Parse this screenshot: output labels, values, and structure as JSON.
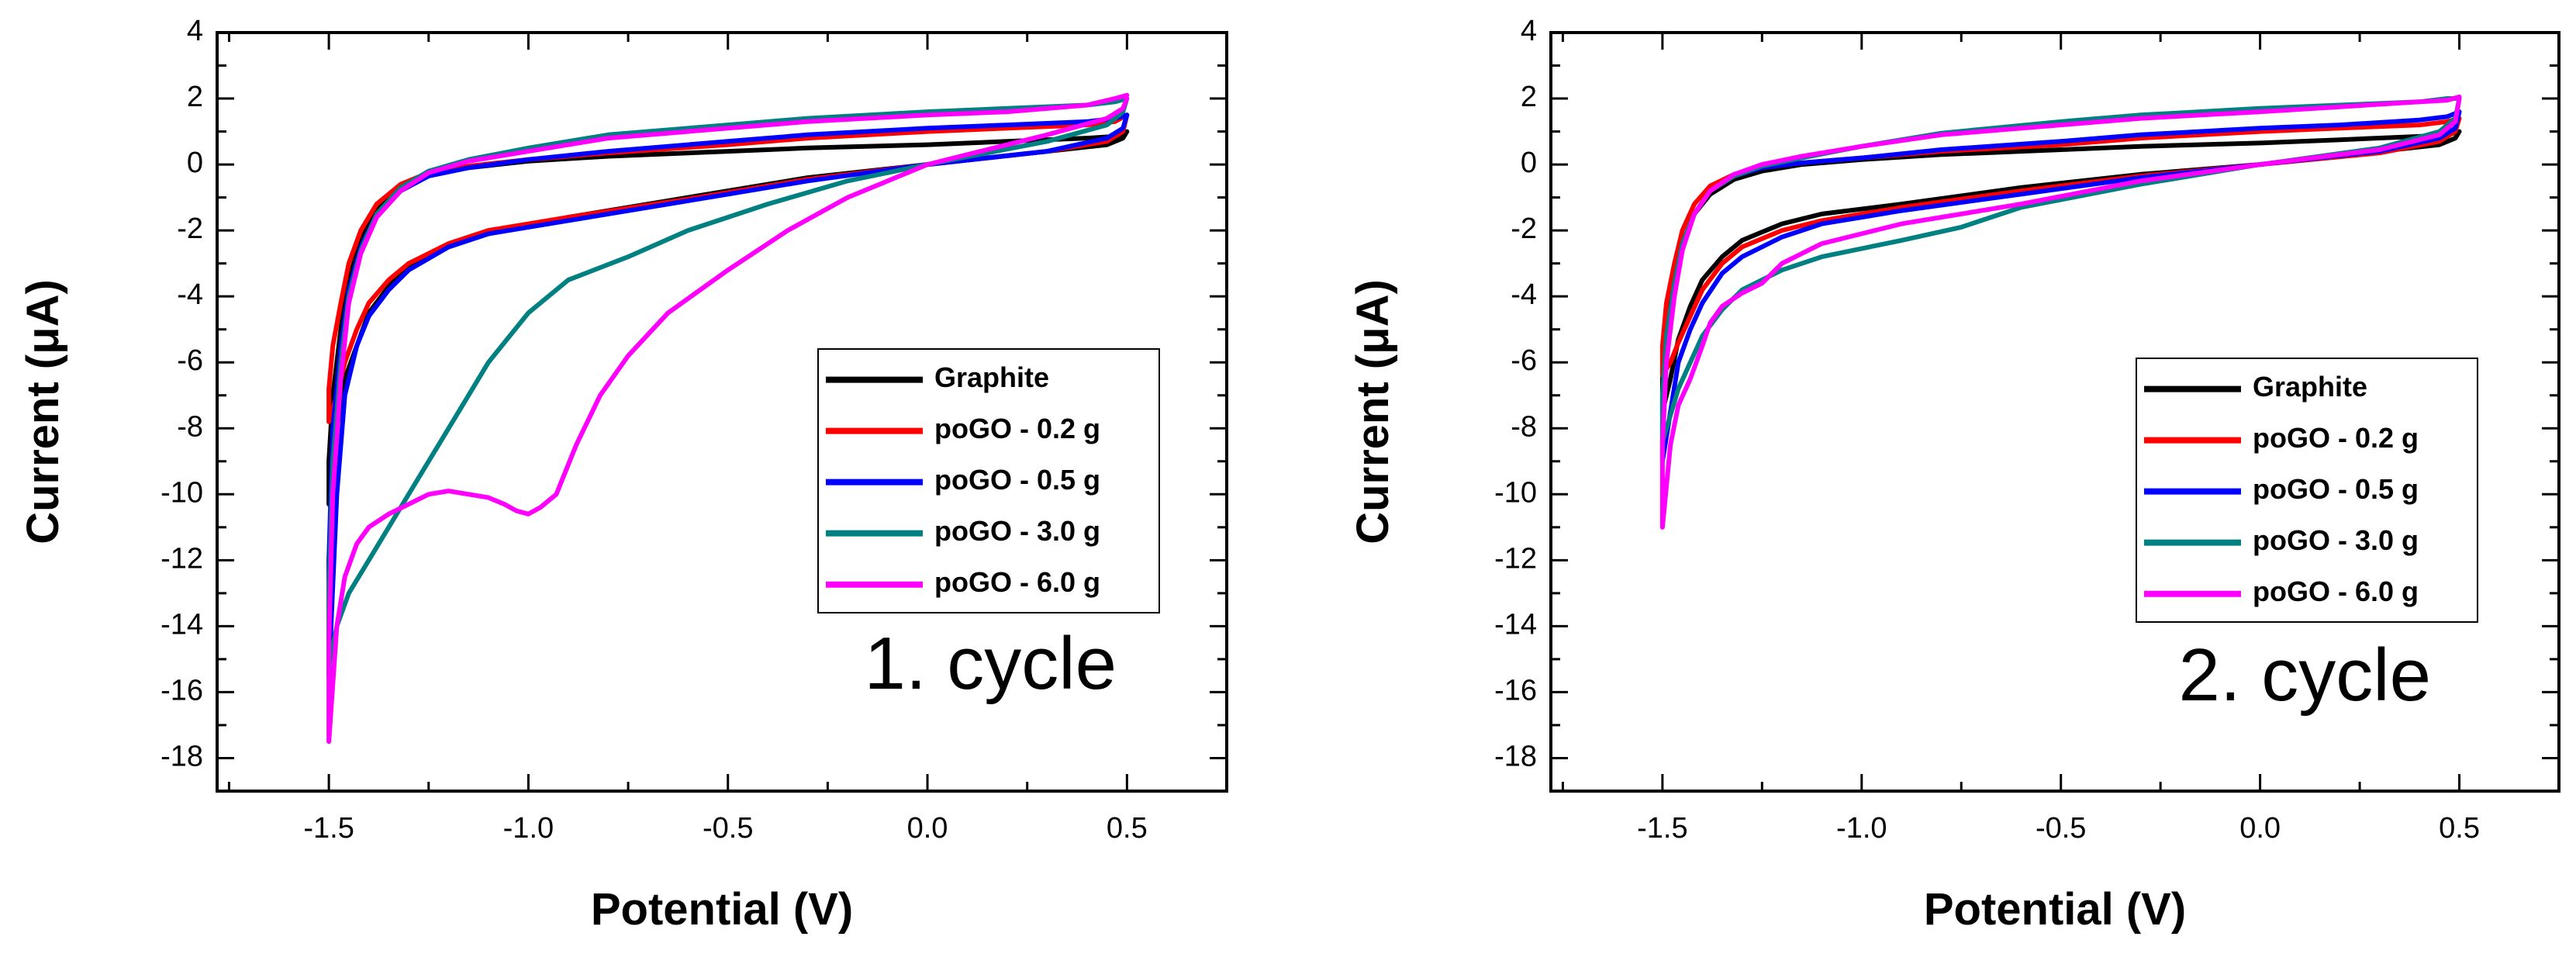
{
  "chart_data": [
    {
      "type": "line",
      "xlabel": "Potential (V)",
      "ylabel": "Current (μA)",
      "xlim": [
        -1.78,
        0.75
      ],
      "ylim": [
        -19,
        4
      ],
      "xticks": [
        -1.5,
        -1.0,
        -0.5,
        0.0,
        0.5
      ],
      "xtick_labels": [
        "-1.5",
        "-1.0",
        "-0.5",
        "0.0",
        "0.5"
      ],
      "yticks": [
        4,
        2,
        0,
        -2,
        -4,
        -6,
        -8,
        -10,
        -12,
        -14,
        -16,
        -18
      ],
      "ytick_labels": [
        "4",
        "2",
        "0",
        "-2",
        "-4",
        "-6",
        "-8",
        "-10",
        "-12",
        "-14",
        "-16",
        "-18"
      ],
      "grid": false,
      "legend_position": "right",
      "annotation": "1. cycle",
      "series": [
        {
          "name": "Graphite",
          "color": "#000000",
          "x": [
            0.5,
            0.49,
            0.45,
            0.3,
            0.0,
            -0.3,
            -0.6,
            -0.9,
            -1.1,
            -1.2,
            -1.3,
            -1.35,
            -1.4,
            -1.43,
            -1.46,
            -1.48,
            -1.5,
            -1.5,
            -1.49,
            -1.47,
            -1.45,
            -1.42,
            -1.38,
            -1.32,
            -1.25,
            -1.15,
            -1.0,
            -0.8,
            -0.5,
            -0.3,
            0.0,
            0.2,
            0.4,
            0.47,
            0.5
          ],
          "y": [
            1.0,
            0.8,
            0.6,
            0.4,
            0.0,
            -0.4,
            -1.0,
            -1.6,
            -2.1,
            -2.5,
            -3.1,
            -3.7,
            -4.5,
            -5.5,
            -6.5,
            -8.0,
            -10.3,
            -9.0,
            -7.0,
            -5.0,
            -3.5,
            -2.3,
            -1.4,
            -0.7,
            -0.3,
            -0.1,
            0.1,
            0.25,
            0.4,
            0.5,
            0.6,
            0.7,
            0.8,
            0.85,
            1.0
          ]
        },
        {
          "name": "poGO - 0.2 g",
          "color": "#ff0000",
          "x": [
            0.5,
            0.49,
            0.45,
            0.3,
            0.0,
            -0.3,
            -0.6,
            -0.9,
            -1.1,
            -1.2,
            -1.3,
            -1.35,
            -1.4,
            -1.43,
            -1.46,
            -1.48,
            -1.5,
            -1.5,
            -1.49,
            -1.47,
            -1.45,
            -1.42,
            -1.38,
            -1.32,
            -1.25,
            -1.15,
            -1.0,
            -0.8,
            -0.5,
            -0.3,
            0.0,
            0.2,
            0.4,
            0.47,
            0.5
          ],
          "y": [
            1.5,
            1.0,
            0.7,
            0.4,
            0.0,
            -0.45,
            -1.05,
            -1.6,
            -2.0,
            -2.4,
            -3.0,
            -3.5,
            -4.2,
            -5.0,
            -6.0,
            -7.0,
            -7.8,
            -6.8,
            -5.5,
            -4.2,
            -3.0,
            -2.0,
            -1.2,
            -0.6,
            -0.25,
            -0.05,
            0.15,
            0.35,
            0.6,
            0.8,
            1.0,
            1.1,
            1.2,
            1.3,
            1.5
          ]
        },
        {
          "name": "poGO - 0.5 g",
          "color": "#0000ff",
          "x": [
            0.5,
            0.49,
            0.45,
            0.3,
            0.0,
            -0.3,
            -0.6,
            -0.9,
            -1.1,
            -1.2,
            -1.3,
            -1.35,
            -1.4,
            -1.43,
            -1.46,
            -1.48,
            -1.5,
            -1.5,
            -1.49,
            -1.47,
            -1.45,
            -1.42,
            -1.38,
            -1.32,
            -1.25,
            -1.15,
            -1.0,
            -0.8,
            -0.5,
            -0.3,
            0.0,
            0.2,
            0.4,
            0.47,
            0.5
          ],
          "y": [
            1.5,
            1.1,
            0.8,
            0.4,
            0.0,
            -0.5,
            -1.1,
            -1.7,
            -2.1,
            -2.5,
            -3.2,
            -3.8,
            -4.6,
            -5.5,
            -7.0,
            -10.0,
            -15.5,
            -12.0,
            -8.0,
            -5.5,
            -3.8,
            -2.5,
            -1.5,
            -0.8,
            -0.35,
            -0.1,
            0.15,
            0.4,
            0.7,
            0.9,
            1.1,
            1.2,
            1.3,
            1.4,
            1.5
          ]
        },
        {
          "name": "poGO - 3.0 g",
          "color": "#008080",
          "x": [
            0.5,
            0.49,
            0.45,
            0.3,
            0.0,
            -0.2,
            -0.4,
            -0.6,
            -0.75,
            -0.9,
            -1.0,
            -1.1,
            -1.2,
            -1.3,
            -1.35,
            -1.4,
            -1.45,
            -1.48,
            -1.5,
            -1.5,
            -1.49,
            -1.47,
            -1.45,
            -1.42,
            -1.38,
            -1.32,
            -1.25,
            -1.15,
            -1.0,
            -0.8,
            -0.5,
            -0.3,
            0.0,
            0.2,
            0.4,
            0.47,
            0.5
          ],
          "y": [
            2.0,
            1.6,
            1.2,
            0.7,
            0.0,
            -0.5,
            -1.2,
            -2.0,
            -2.8,
            -3.5,
            -4.5,
            -6.0,
            -8.0,
            -10.0,
            -11.0,
            -12.0,
            -13.0,
            -14.0,
            -15.2,
            -13.0,
            -9.0,
            -6.0,
            -4.0,
            -2.6,
            -1.5,
            -0.7,
            -0.2,
            0.15,
            0.5,
            0.9,
            1.2,
            1.4,
            1.6,
            1.7,
            1.8,
            1.9,
            2.0
          ]
        },
        {
          "name": "poGO - 6.0 g",
          "color": "#ff00ff",
          "x": [
            0.5,
            0.49,
            0.45,
            0.3,
            0.0,
            -0.2,
            -0.35,
            -0.5,
            -0.65,
            -0.75,
            -0.82,
            -0.88,
            -0.93,
            -0.97,
            -1.0,
            -1.03,
            -1.06,
            -1.1,
            -1.15,
            -1.2,
            -1.25,
            -1.3,
            -1.35,
            -1.4,
            -1.43,
            -1.46,
            -1.48,
            -1.5,
            -1.5,
            -1.49,
            -1.47,
            -1.45,
            -1.42,
            -1.38,
            -1.32,
            -1.25,
            -1.15,
            -1.0,
            -0.8,
            -0.5,
            -0.3,
            0.0,
            0.2,
            0.4,
            0.47,
            0.5
          ],
          "y": [
            2.0,
            1.7,
            1.4,
            0.9,
            0.0,
            -1.0,
            -2.0,
            -3.2,
            -4.5,
            -5.8,
            -7.0,
            -8.5,
            -10.0,
            -10.4,
            -10.6,
            -10.5,
            -10.3,
            -10.1,
            -10.0,
            -9.9,
            -10.0,
            -10.3,
            -10.6,
            -11.0,
            -11.5,
            -12.5,
            -14.0,
            -17.5,
            -14.5,
            -10.0,
            -6.5,
            -4.2,
            -2.7,
            -1.6,
            -0.8,
            -0.25,
            0.1,
            0.4,
            0.8,
            1.1,
            1.3,
            1.5,
            1.6,
            1.8,
            2.0,
            2.1
          ]
        }
      ]
    },
    {
      "type": "line",
      "xlabel": "Potential (V)",
      "ylabel": "Current (μA)",
      "xlim": [
        -1.78,
        0.75
      ],
      "ylim": [
        -19,
        4
      ],
      "xticks": [
        -1.5,
        -1.0,
        -0.5,
        0.0,
        0.5
      ],
      "xtick_labels": [
        "-1.5",
        "-1.0",
        "-0.5",
        "0.0",
        "0.5"
      ],
      "yticks": [
        4,
        2,
        0,
        -2,
        -4,
        -6,
        -8,
        -10,
        -12,
        -14,
        -16,
        -18
      ],
      "ytick_labels": [
        "4",
        "2",
        "0",
        "-2",
        "-4",
        "-6",
        "-8",
        "-10",
        "-12",
        "-14",
        "-16",
        "-18"
      ],
      "grid": false,
      "legend_position": "right",
      "annotation": "2. cycle",
      "series": [
        {
          "name": "Graphite",
          "color": "#000000",
          "x": [
            0.5,
            0.49,
            0.45,
            0.3,
            0.0,
            -0.3,
            -0.6,
            -0.9,
            -1.1,
            -1.2,
            -1.3,
            -1.35,
            -1.4,
            -1.43,
            -1.46,
            -1.48,
            -1.5,
            -1.5,
            -1.49,
            -1.47,
            -1.45,
            -1.42,
            -1.38,
            -1.32,
            -1.25,
            -1.15,
            -1.0,
            -0.8,
            -0.5,
            -0.3,
            0.0,
            0.2,
            0.4,
            0.47,
            0.5
          ],
          "y": [
            1.0,
            0.8,
            0.6,
            0.4,
            0.0,
            -0.3,
            -0.7,
            -1.2,
            -1.5,
            -1.8,
            -2.3,
            -2.8,
            -3.5,
            -4.3,
            -5.3,
            -6.5,
            -7.5,
            -6.5,
            -5.0,
            -3.5,
            -2.4,
            -1.5,
            -0.9,
            -0.45,
            -0.2,
            0.0,
            0.15,
            0.3,
            0.45,
            0.55,
            0.65,
            0.75,
            0.85,
            0.9,
            1.0
          ]
        },
        {
          "name": "poGO - 0.2 g",
          "color": "#ff0000",
          "x": [
            0.5,
            0.49,
            0.45,
            0.3,
            0.0,
            -0.3,
            -0.6,
            -0.9,
            -1.1,
            -1.2,
            -1.3,
            -1.35,
            -1.4,
            -1.43,
            -1.46,
            -1.48,
            -1.5,
            -1.5,
            -1.49,
            -1.47,
            -1.45,
            -1.42,
            -1.38,
            -1.32,
            -1.25,
            -1.15,
            -1.0,
            -0.8,
            -0.5,
            -0.3,
            0.0,
            0.2,
            0.4,
            0.47,
            0.5
          ],
          "y": [
            1.4,
            1.0,
            0.7,
            0.35,
            0.0,
            -0.35,
            -0.8,
            -1.3,
            -1.7,
            -2.0,
            -2.5,
            -3.0,
            -3.8,
            -4.6,
            -5.4,
            -6.0,
            -6.4,
            -5.5,
            -4.2,
            -3.0,
            -2.0,
            -1.2,
            -0.65,
            -0.3,
            -0.1,
            0.05,
            0.2,
            0.4,
            0.6,
            0.8,
            1.0,
            1.1,
            1.2,
            1.3,
            1.4
          ]
        },
        {
          "name": "poGO - 0.5 g",
          "color": "#0000ff",
          "x": [
            0.5,
            0.49,
            0.45,
            0.3,
            0.0,
            -0.3,
            -0.6,
            -0.9,
            -1.1,
            -1.2,
            -1.3,
            -1.35,
            -1.4,
            -1.43,
            -1.46,
            -1.48,
            -1.5,
            -1.5,
            -1.49,
            -1.47,
            -1.45,
            -1.42,
            -1.38,
            -1.32,
            -1.25,
            -1.15,
            -1.0,
            -0.8,
            -0.5,
            -0.3,
            0.0,
            0.2,
            0.4,
            0.47,
            0.5
          ],
          "y": [
            1.6,
            1.1,
            0.8,
            0.4,
            0.0,
            -0.4,
            -0.9,
            -1.4,
            -1.8,
            -2.2,
            -2.8,
            -3.3,
            -4.2,
            -5.0,
            -6.0,
            -7.5,
            -9.0,
            -7.5,
            -5.5,
            -3.8,
            -2.5,
            -1.5,
            -0.8,
            -0.35,
            -0.1,
            0.05,
            0.2,
            0.45,
            0.7,
            0.9,
            1.1,
            1.2,
            1.35,
            1.45,
            1.6
          ]
        },
        {
          "name": "poGO - 3.0 g",
          "color": "#008080",
          "x": [
            0.5,
            0.49,
            0.45,
            0.3,
            0.0,
            -0.3,
            -0.6,
            -0.75,
            -0.9,
            -1.1,
            -1.2,
            -1.3,
            -1.35,
            -1.4,
            -1.43,
            -1.46,
            -1.48,
            -1.5,
            -1.5,
            -1.49,
            -1.47,
            -1.45,
            -1.42,
            -1.38,
            -1.32,
            -1.25,
            -1.15,
            -1.0,
            -0.8,
            -0.5,
            -0.3,
            0.0,
            0.2,
            0.4,
            0.47,
            0.5
          ],
          "y": [
            2.0,
            1.4,
            1.0,
            0.5,
            0.0,
            -0.6,
            -1.3,
            -1.9,
            -2.3,
            -2.8,
            -3.2,
            -3.8,
            -4.4,
            -5.2,
            -6.0,
            -6.8,
            -7.6,
            -8.4,
            -7.0,
            -5.2,
            -3.6,
            -2.4,
            -1.5,
            -0.8,
            -0.35,
            -0.05,
            0.2,
            0.55,
            0.95,
            1.3,
            1.5,
            1.7,
            1.8,
            1.9,
            2.0,
            2.0
          ]
        },
        {
          "name": "poGO - 6.0 g",
          "color": "#ff00ff",
          "x": [
            0.5,
            0.49,
            0.45,
            0.3,
            0.0,
            -0.3,
            -0.6,
            -0.9,
            -1.1,
            -1.2,
            -1.25,
            -1.3,
            -1.35,
            -1.38,
            -1.4,
            -1.43,
            -1.46,
            -1.48,
            -1.5,
            -1.5,
            -1.49,
            -1.47,
            -1.45,
            -1.42,
            -1.38,
            -1.32,
            -1.25,
            -1.15,
            -1.0,
            -0.8,
            -0.5,
            -0.3,
            0.0,
            0.2,
            0.4,
            0.47,
            0.5
          ],
          "y": [
            2.0,
            1.3,
            0.9,
            0.45,
            0.0,
            -0.5,
            -1.2,
            -1.8,
            -2.4,
            -3.0,
            -3.6,
            -3.9,
            -4.3,
            -4.8,
            -5.5,
            -6.5,
            -7.3,
            -8.5,
            -11.0,
            -8.5,
            -6.0,
            -4.0,
            -2.6,
            -1.5,
            -0.8,
            -0.3,
            0.0,
            0.25,
            0.55,
            0.9,
            1.2,
            1.4,
            1.6,
            1.75,
            1.9,
            1.95,
            2.05
          ]
        }
      ]
    }
  ]
}
